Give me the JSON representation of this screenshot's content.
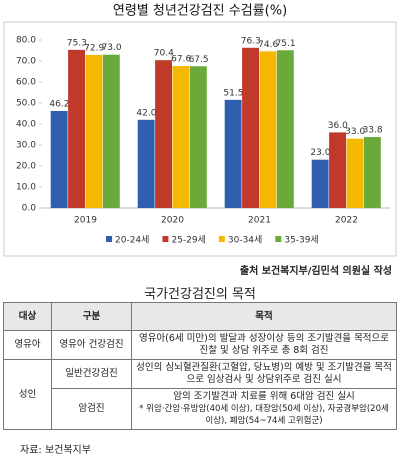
{
  "chart_data": {
    "type": "bar",
    "title": "연령별 청년건강검진 수검률(%)",
    "categories": [
      "2019",
      "2020",
      "2021",
      "2022"
    ],
    "series": [
      {
        "name": "20-24세",
        "color": "#2f5fae",
        "values": [
          46.2,
          42.0,
          51.5,
          23.0
        ],
        "value_labels": [
          "46.2",
          "42.0",
          "51.5",
          "23.0"
        ]
      },
      {
        "name": "25-29세",
        "color": "#c0392b",
        "values": [
          75.3,
          70.4,
          76.3,
          36.0
        ],
        "value_labels": [
          "75.3",
          "70.4",
          "76.3",
          "36.0"
        ]
      },
      {
        "name": "30-34세",
        "color": "#f5b800",
        "values": [
          72.9,
          67.6,
          74.6,
          33.0
        ],
        "value_labels": [
          "72.9",
          "67.6",
          "74.6",
          "33.0"
        ]
      },
      {
        "name": "35-39세",
        "color": "#6aaa3a",
        "values": [
          73.0,
          67.5,
          75.1,
          33.8
        ],
        "value_labels": [
          "73.0",
          "67.5",
          "75.1",
          "33.8"
        ]
      }
    ],
    "ylim": [
      0,
      80
    ],
    "yticks": [
      {
        "value": 0,
        "label": "0.0"
      },
      {
        "value": 10,
        "label": "10.0"
      },
      {
        "value": 20,
        "label": "20.0"
      },
      {
        "value": 30,
        "label": "30.0"
      },
      {
        "value": 40,
        "label": "40.0"
      },
      {
        "value": 50,
        "label": "50.0"
      },
      {
        "value": 60,
        "label": "60.0"
      },
      {
        "value": 70,
        "label": "70.0"
      },
      {
        "value": 80,
        "label": "80.0"
      }
    ],
    "grid": false,
    "legend": "bottom"
  },
  "source": {
    "label": "출처",
    "text": "보건복지부/김민석 의원실 작성"
  },
  "table": {
    "title": "국가건강검진의 목적",
    "header": [
      "대상",
      "구분",
      "목적"
    ],
    "groups": [
      {
        "target": "영유아",
        "rows": [
          [
            "영유아 건강검진",
            "영유아(6세 미만)의 발달과 성장이상 등의 조기발견을 목적으로 진찰 및 상담 위주로 총 8회 검진"
          ]
        ]
      },
      {
        "target": "성인",
        "rows": [
          [
            "일반건강검진",
            "성인의 심뇌혈관질환(고혈압, 당뇨병)의 예방 및 조기발견을 목적으로 임상검사 및 상담위주로 검진 실시"
          ],
          [
            "암검진",
            "암의 조기발견과 치료를 위해 6대암 검진 실시",
            "* 위암·간암·유방암(40세 이상), 대장암(50세 이상), 자궁경부암(20세 이상), 폐암(54~74세 고위험군)"
          ]
        ]
      }
    ],
    "footnote": "자료: 보건복지부"
  }
}
